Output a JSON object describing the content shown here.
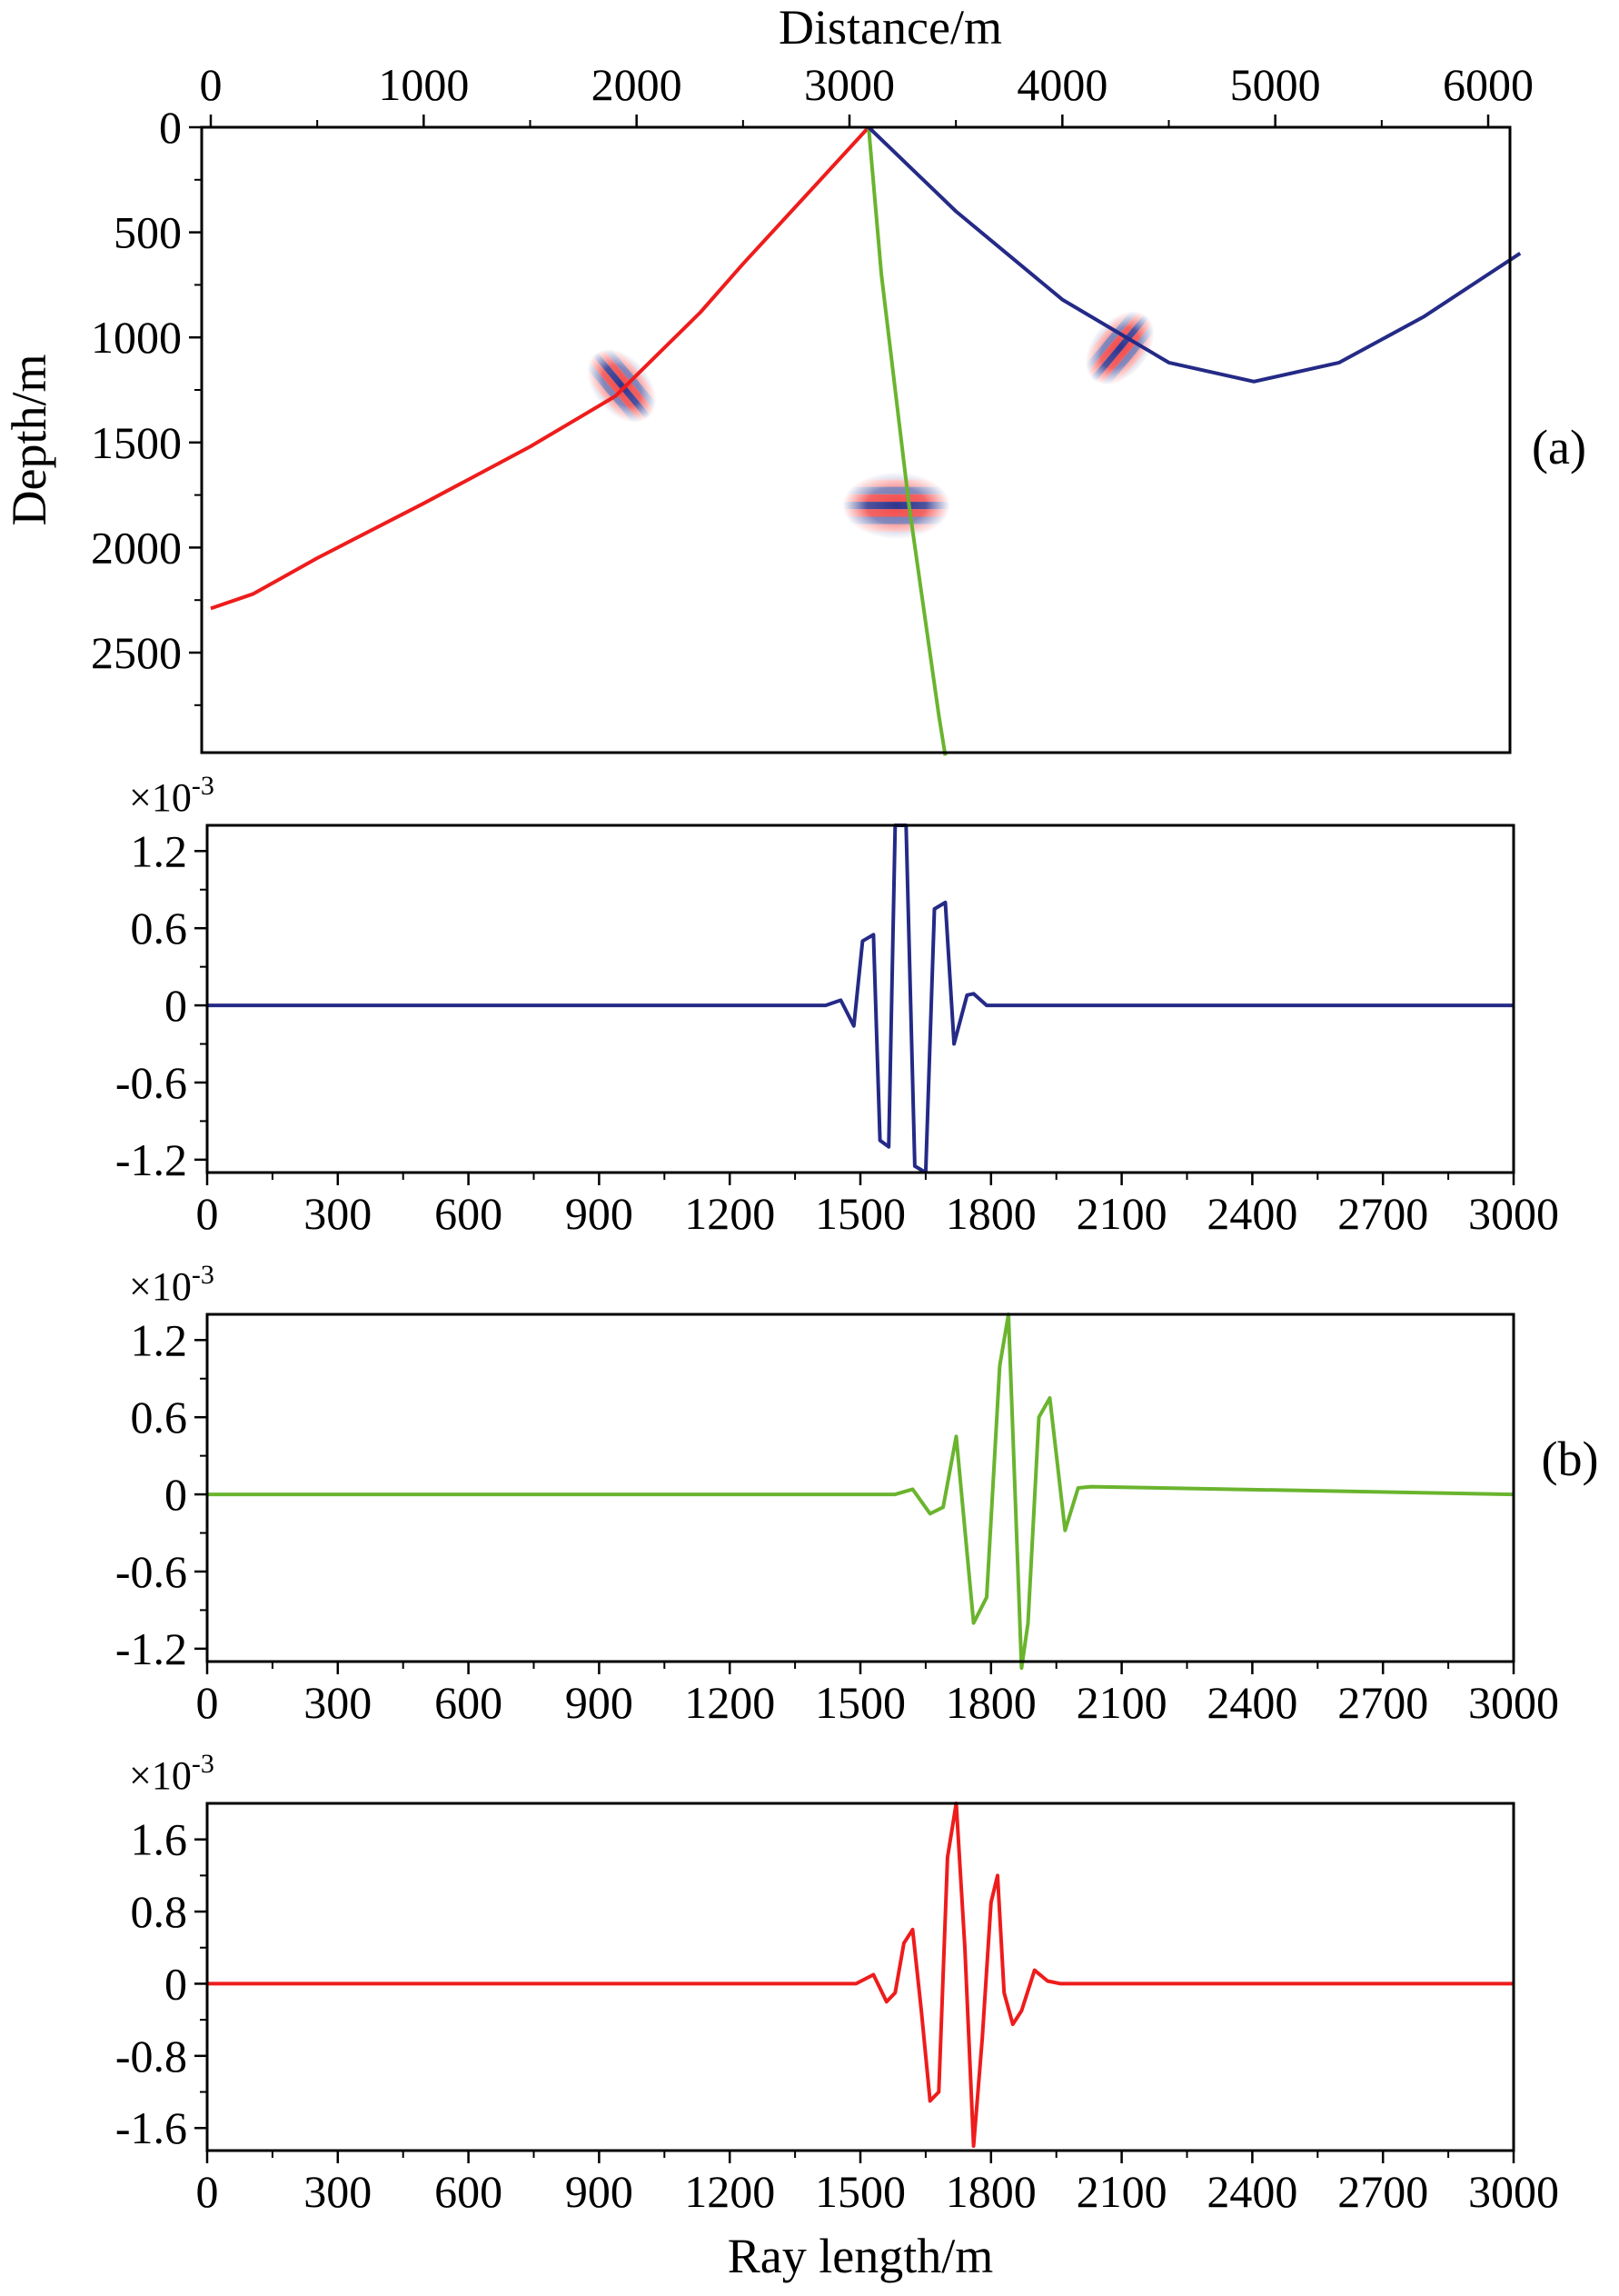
{
  "figure_labels": {
    "a": "(a)",
    "b": "(b)"
  },
  "chart_data": [
    {
      "id": "ray_paths",
      "type": "line",
      "panel_label": "(a)",
      "xlabel": "Distance/m",
      "ylabel": "Depth/m",
      "x_axis_position": "top",
      "y_inverted": true,
      "xlim": [
        0,
        6200
      ],
      "ylim": [
        0,
        3000
      ],
      "xticks": [
        0,
        1000,
        2000,
        3000,
        4000,
        5000,
        6000
      ],
      "xtick_labels": [
        "0",
        "1000",
        "2000",
        "3000",
        "4000",
        "5000",
        "6000"
      ],
      "yticks": [
        0,
        500,
        1000,
        1500,
        2000,
        2500
      ],
      "ytick_labels": [
        "0",
        "500",
        "1000",
        "1500",
        "2000",
        "2500"
      ],
      "series": [
        {
          "color": "#ee1c1c",
          "x": [
            3090,
            2800,
            2500,
            2300,
            2100,
            1900,
            1500,
            1000,
            500,
            200,
            0
          ],
          "y": [
            0,
            320,
            650,
            880,
            1080,
            1280,
            1520,
            1790,
            2050,
            2220,
            2290
          ]
        },
        {
          "color": "#6ab42e",
          "x": [
            3090,
            3150,
            3280,
            3420,
            3450
          ],
          "y": [
            0,
            700,
            1800,
            2800,
            2990
          ]
        },
        {
          "color": "#242a86",
          "x": [
            3090,
            3500,
            4000,
            4500,
            4900,
            5300,
            5700,
            6150
          ],
          "y": [
            0,
            400,
            820,
            1120,
            1210,
            1120,
            900,
            600
          ]
        }
      ],
      "annotations": [
        {
          "kind": "gaussian-beam-wavelet",
          "x": 1930,
          "y": 1230,
          "orientation": "along-ray"
        },
        {
          "kind": "gaussian-beam-wavelet",
          "x": 4270,
          "y": 1050,
          "orientation": "along-ray"
        },
        {
          "kind": "gaussian-beam-wavelet",
          "x": 3220,
          "y": 1800,
          "orientation": "horizontal"
        }
      ]
    },
    {
      "id": "wavelet_blue",
      "type": "line",
      "panel_label": "",
      "multiplier_label": "×10",
      "multiplier_exponent": "-3",
      "xlim": [
        0,
        3000
      ],
      "ylim": [
        -1.3,
        1.4
      ],
      "xticks": [
        0,
        300,
        600,
        900,
        1200,
        1500,
        1800,
        2100,
        2400,
        2700,
        3000
      ],
      "xtick_labels": [
        "0",
        "300",
        "600",
        "900",
        "1200",
        "1500",
        "1800",
        "2100",
        "2400",
        "2700",
        "3000"
      ],
      "yticks": [
        1.2,
        0.6,
        0,
        -0.6,
        -1.2
      ],
      "ytick_labels": [
        "1.2",
        "0.6",
        "0",
        "-0.6",
        "-1.2"
      ],
      "series": [
        {
          "color": "#242a86",
          "x": [
            0,
            1420,
            1455,
            1485,
            1505,
            1530,
            1545,
            1565,
            1580,
            1605,
            1625,
            1650,
            1670,
            1695,
            1715,
            1745,
            1760,
            1790,
            3000
          ],
          "y": [
            0,
            0,
            0.04,
            -0.16,
            0.5,
            0.55,
            -1.05,
            -1.1,
            1.4,
            1.4,
            -1.25,
            -1.3,
            0.75,
            0.8,
            -0.3,
            0.08,
            0.09,
            0,
            0
          ]
        }
      ]
    },
    {
      "id": "wavelet_green",
      "type": "line",
      "panel_label": "(b)",
      "multiplier_label": "×10",
      "multiplier_exponent": "-3",
      "xlim": [
        0,
        3000
      ],
      "ylim": [
        -1.3,
        1.4
      ],
      "xticks": [
        0,
        300,
        600,
        900,
        1200,
        1500,
        1800,
        2100,
        2400,
        2700,
        3000
      ],
      "xtick_labels": [
        "0",
        "300",
        "600",
        "900",
        "1200",
        "1500",
        "1800",
        "2100",
        "2400",
        "2700",
        "3000"
      ],
      "yticks": [
        1.2,
        0.6,
        0,
        -0.6,
        -1.2
      ],
      "ytick_labels": [
        "1.2",
        "0.6",
        "0",
        "-0.6",
        "-1.2"
      ],
      "series": [
        {
          "color": "#6ab42e",
          "x": [
            0,
            1580,
            1620,
            1660,
            1690,
            1720,
            1760,
            1790,
            1820,
            1840,
            1870,
            1885,
            1910,
            1935,
            1970,
            2000,
            2030,
            3000
          ],
          "y": [
            0,
            0,
            0.04,
            -0.15,
            -0.1,
            0.45,
            -1.0,
            -0.8,
            1.0,
            1.4,
            -1.35,
            -1.0,
            0.6,
            0.75,
            -0.28,
            0.05,
            0.06,
            0
          ]
        }
      ]
    },
    {
      "id": "wavelet_red",
      "type": "line",
      "panel_label": "",
      "multiplier_label": "×10",
      "multiplier_exponent": "-3",
      "xlabel": "Ray length/m",
      "xlim": [
        0,
        3000
      ],
      "ylim": [
        -1.85,
        2.0
      ],
      "xticks": [
        0,
        300,
        600,
        900,
        1200,
        1500,
        1800,
        2100,
        2400,
        2700,
        3000
      ],
      "xtick_labels": [
        "0",
        "300",
        "600",
        "900",
        "1200",
        "1500",
        "1800",
        "2100",
        "2400",
        "2700",
        "3000"
      ],
      "yticks": [
        1.6,
        0.8,
        0,
        -0.8,
        -1.6
      ],
      "ytick_labels": [
        "1.6",
        "0.8",
        "0",
        "-0.8",
        "-1.6"
      ],
      "series": [
        {
          "color": "#ee1c1c",
          "x": [
            0,
            1490,
            1530,
            1560,
            1580,
            1600,
            1620,
            1640,
            1660,
            1680,
            1700,
            1720,
            1740,
            1760,
            1780,
            1800,
            1815,
            1830,
            1850,
            1870,
            1900,
            1930,
            1960,
            3000
          ],
          "y": [
            0,
            0,
            0.1,
            -0.2,
            -0.1,
            0.45,
            0.6,
            -0.3,
            -1.3,
            -1.2,
            1.4,
            2.0,
            0.4,
            -1.8,
            -0.6,
            0.9,
            1.2,
            -0.1,
            -0.45,
            -0.3,
            0.15,
            0.03,
            0,
            0
          ]
        }
      ]
    }
  ]
}
